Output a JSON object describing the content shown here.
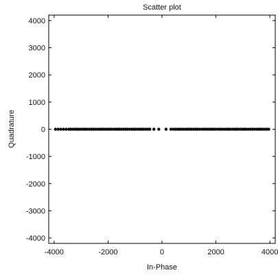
{
  "chart_data": {
    "type": "scatter",
    "title": "Scatter plot",
    "xlabel": "In-Phase",
    "ylabel": "Quadrature",
    "xlim": [
      -4200,
      4200
    ],
    "ylim": [
      -4200,
      4200
    ],
    "xticks": [
      -4000,
      -2000,
      0,
      2000,
      4000
    ],
    "yticks": [
      -4000,
      -3000,
      -2000,
      -1000,
      0,
      1000,
      2000,
      3000,
      4000
    ],
    "grid": false,
    "legend": "none",
    "series": [
      {
        "color": "#000000",
        "points": [
          [
            -3950,
            0
          ],
          [
            -3850,
            0
          ],
          [
            -3750,
            0
          ],
          [
            -3650,
            0
          ],
          [
            -3550,
            0
          ],
          [
            -3450,
            0
          ],
          [
            -3380,
            0
          ],
          [
            -3300,
            0
          ],
          [
            -3220,
            0
          ],
          [
            -3150,
            0
          ],
          [
            -3080,
            0
          ],
          [
            -3000,
            0
          ],
          [
            -2920,
            0
          ],
          [
            -2850,
            0
          ],
          [
            -2780,
            0
          ],
          [
            -2700,
            0
          ],
          [
            -2620,
            0
          ],
          [
            -2550,
            0
          ],
          [
            -2480,
            0
          ],
          [
            -2400,
            0
          ],
          [
            -2320,
            0
          ],
          [
            -2250,
            0
          ],
          [
            -2180,
            0
          ],
          [
            -2100,
            0
          ],
          [
            -2020,
            0
          ],
          [
            -1950,
            0
          ],
          [
            -1880,
            0
          ],
          [
            -1800,
            0
          ],
          [
            -1720,
            0
          ],
          [
            -1650,
            0
          ],
          [
            -1580,
            0
          ],
          [
            -1500,
            0
          ],
          [
            -1420,
            0
          ],
          [
            -1350,
            0
          ],
          [
            -1280,
            0
          ],
          [
            -1200,
            0
          ],
          [
            -1120,
            0
          ],
          [
            -1050,
            0
          ],
          [
            -980,
            0
          ],
          [
            -900,
            0
          ],
          [
            -820,
            0
          ],
          [
            -750,
            0
          ],
          [
            -680,
            0
          ],
          [
            -600,
            0
          ],
          [
            -520,
            0
          ],
          [
            -450,
            0
          ],
          [
            -300,
            0
          ],
          [
            -120,
            0
          ],
          [
            150,
            0
          ],
          [
            330,
            0
          ],
          [
            420,
            0
          ],
          [
            500,
            0
          ],
          [
            580,
            0
          ],
          [
            650,
            0
          ],
          [
            720,
            0
          ],
          [
            800,
            0
          ],
          [
            880,
            0
          ],
          [
            950,
            0
          ],
          [
            1020,
            0
          ],
          [
            1100,
            0
          ],
          [
            1180,
            0
          ],
          [
            1250,
            0
          ],
          [
            1320,
            0
          ],
          [
            1400,
            0
          ],
          [
            1480,
            0
          ],
          [
            1550,
            0
          ],
          [
            1620,
            0
          ],
          [
            1700,
            0
          ],
          [
            1780,
            0
          ],
          [
            1850,
            0
          ],
          [
            1920,
            0
          ],
          [
            2000,
            0
          ],
          [
            2080,
            0
          ],
          [
            2150,
            0
          ],
          [
            2220,
            0
          ],
          [
            2300,
            0
          ],
          [
            2380,
            0
          ],
          [
            2450,
            0
          ],
          [
            2520,
            0
          ],
          [
            2600,
            0
          ],
          [
            2680,
            0
          ],
          [
            2750,
            0
          ],
          [
            2820,
            0
          ],
          [
            2900,
            0
          ],
          [
            2980,
            0
          ],
          [
            3050,
            0
          ],
          [
            3120,
            0
          ],
          [
            3200,
            0
          ],
          [
            3280,
            0
          ],
          [
            3350,
            0
          ],
          [
            3420,
            0
          ],
          [
            3500,
            0
          ],
          [
            3580,
            0
          ],
          [
            3650,
            0
          ],
          [
            3720,
            0
          ],
          [
            3800,
            0
          ],
          [
            3880,
            0
          ],
          [
            3960,
            0
          ]
        ]
      }
    ]
  }
}
